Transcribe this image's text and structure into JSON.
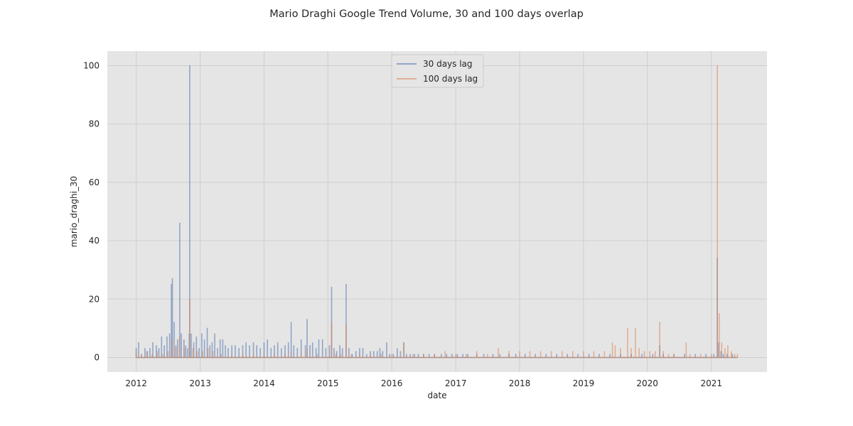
{
  "chart_data": {
    "type": "line",
    "title": "Mario Draghi Google Trend Volume, 30 and 100 days overlap",
    "xlabel": "date",
    "ylabel": "mario_draghi_30",
    "x_range": [
      "2011-07-20",
      "2021-11-15"
    ],
    "xticks": [
      "2012",
      "2013",
      "2014",
      "2015",
      "2016",
      "2017",
      "2018",
      "2019",
      "2020",
      "2021"
    ],
    "ylim": [
      -5,
      105
    ],
    "yticks": [
      0,
      20,
      40,
      60,
      80,
      100
    ],
    "grid": true,
    "legend_position": "upper center",
    "style_colors": {
      "plot_background": "#e5e5e5",
      "grid": "#cfcfcf",
      "series_30": "#4c72b0",
      "series_100": "#dd8452"
    },
    "series": [
      {
        "name": "30 days lag",
        "color": "#4c72b0",
        "points": [
          [
            "2012-01-01",
            3
          ],
          [
            "2012-01-15",
            5
          ],
          [
            "2012-02-01",
            1
          ],
          [
            "2012-02-20",
            3
          ],
          [
            "2012-03-05",
            2
          ],
          [
            "2012-03-20",
            3
          ],
          [
            "2012-04-05",
            5
          ],
          [
            "2012-04-25",
            4
          ],
          [
            "2012-05-10",
            3
          ],
          [
            "2012-05-25",
            7
          ],
          [
            "2012-06-10",
            4
          ],
          [
            "2012-06-25",
            7
          ],
          [
            "2012-07-10",
            8
          ],
          [
            "2012-07-20",
            25
          ],
          [
            "2012-07-26",
            27
          ],
          [
            "2012-08-05",
            12
          ],
          [
            "2012-08-15",
            4
          ],
          [
            "2012-08-25",
            6
          ],
          [
            "2012-09-06",
            46
          ],
          [
            "2012-09-15",
            8
          ],
          [
            "2012-09-30",
            6
          ],
          [
            "2012-10-10",
            4
          ],
          [
            "2012-10-20",
            3
          ],
          [
            "2012-10-30",
            8
          ],
          [
            "2012-11-02",
            100
          ],
          [
            "2012-11-10",
            8
          ],
          [
            "2012-11-25",
            5
          ],
          [
            "2012-12-10",
            7
          ],
          [
            "2012-12-25",
            3
          ],
          [
            "2013-01-10",
            8
          ],
          [
            "2013-01-25",
            6
          ],
          [
            "2013-02-10",
            10
          ],
          [
            "2013-02-25",
            4
          ],
          [
            "2013-03-10",
            5
          ],
          [
            "2013-03-25",
            8
          ],
          [
            "2013-04-10",
            3
          ],
          [
            "2013-04-25",
            6
          ],
          [
            "2013-05-10",
            6
          ],
          [
            "2013-05-25",
            4
          ],
          [
            "2013-06-10",
            3
          ],
          [
            "2013-07-01",
            4
          ],
          [
            "2013-07-20",
            4
          ],
          [
            "2013-08-10",
            3
          ],
          [
            "2013-09-01",
            4
          ],
          [
            "2013-09-20",
            5
          ],
          [
            "2013-10-10",
            4
          ],
          [
            "2013-11-01",
            5
          ],
          [
            "2013-11-20",
            4
          ],
          [
            "2013-12-10",
            3
          ],
          [
            "2014-01-01",
            5
          ],
          [
            "2014-01-20",
            6
          ],
          [
            "2014-02-10",
            3
          ],
          [
            "2014-03-01",
            4
          ],
          [
            "2014-03-20",
            5
          ],
          [
            "2014-04-10",
            3
          ],
          [
            "2014-05-01",
            4
          ],
          [
            "2014-05-20",
            5
          ],
          [
            "2014-06-05",
            12
          ],
          [
            "2014-06-20",
            4
          ],
          [
            "2014-07-10",
            3
          ],
          [
            "2014-08-01",
            6
          ],
          [
            "2014-08-25",
            4
          ],
          [
            "2014-09-04",
            13
          ],
          [
            "2014-09-20",
            4
          ],
          [
            "2014-10-05",
            5
          ],
          [
            "2014-10-25",
            3
          ],
          [
            "2014-11-10",
            6
          ],
          [
            "2014-12-01",
            6
          ],
          [
            "2014-12-20",
            3
          ],
          [
            "2015-01-10",
            4
          ],
          [
            "2015-01-22",
            24
          ],
          [
            "2015-02-05",
            3
          ],
          [
            "2015-02-20",
            2
          ],
          [
            "2015-03-10",
            4
          ],
          [
            "2015-03-25",
            3
          ],
          [
            "2015-04-15",
            25
          ],
          [
            "2015-05-01",
            3
          ],
          [
            "2015-05-20",
            1
          ],
          [
            "2015-06-10",
            2
          ],
          [
            "2015-07-01",
            3
          ],
          [
            "2015-07-20",
            3
          ],
          [
            "2015-08-10",
            1
          ],
          [
            "2015-09-01",
            2
          ],
          [
            "2015-09-20",
            2
          ],
          [
            "2015-10-10",
            2
          ],
          [
            "2015-10-25",
            3
          ],
          [
            "2015-11-10",
            2
          ],
          [
            "2015-12-03",
            5
          ],
          [
            "2015-12-20",
            1
          ],
          [
            "2016-01-10",
            1
          ],
          [
            "2016-02-01",
            3
          ],
          [
            "2016-02-20",
            2
          ],
          [
            "2016-03-10",
            5
          ],
          [
            "2016-03-25",
            1
          ],
          [
            "2016-04-15",
            1
          ],
          [
            "2016-05-10",
            1
          ],
          [
            "2016-06-01",
            1
          ],
          [
            "2016-07-01",
            1
          ],
          [
            "2016-08-01",
            1
          ],
          [
            "2016-09-01",
            1
          ],
          [
            "2016-10-10",
            1
          ],
          [
            "2016-11-10",
            1
          ],
          [
            "2016-12-10",
            1
          ],
          [
            "2017-01-10",
            1
          ],
          [
            "2017-02-10",
            1
          ],
          [
            "2017-03-10",
            1
          ],
          [
            "2017-05-01",
            1
          ],
          [
            "2017-06-10",
            1
          ],
          [
            "2017-08-01",
            1
          ],
          [
            "2017-09-10",
            1
          ],
          [
            "2017-11-01",
            1
          ],
          [
            "2017-12-10",
            1
          ],
          [
            "2018-02-01",
            1
          ],
          [
            "2018-04-01",
            1
          ],
          [
            "2018-06-01",
            1
          ],
          [
            "2018-08-01",
            1
          ],
          [
            "2018-10-01",
            1
          ],
          [
            "2018-12-01",
            1
          ],
          [
            "2019-02-01",
            1
          ],
          [
            "2019-04-01",
            1
          ],
          [
            "2019-06-01",
            1
          ],
          [
            "2019-08-01",
            1
          ],
          [
            "2019-10-01",
            1
          ],
          [
            "2019-12-01",
            1
          ],
          [
            "2020-02-01",
            1
          ],
          [
            "2020-03-12",
            4
          ],
          [
            "2020-04-01",
            1
          ],
          [
            "2020-06-01",
            1
          ],
          [
            "2020-08-01",
            1
          ],
          [
            "2020-10-01",
            1
          ],
          [
            "2020-12-01",
            1
          ],
          [
            "2021-01-15",
            1
          ],
          [
            "2021-02-04",
            34
          ],
          [
            "2021-02-12",
            5
          ],
          [
            "2021-02-25",
            2
          ],
          [
            "2021-03-10",
            1
          ],
          [
            "2021-04-01",
            1
          ],
          [
            "2021-05-01",
            1
          ],
          [
            "2021-05-30",
            0
          ]
        ]
      },
      {
        "name": "100 days lag",
        "color": "#dd8452",
        "points": [
          [
            "2012-01-01",
            2
          ],
          [
            "2012-02-01",
            1
          ],
          [
            "2012-03-01",
            2
          ],
          [
            "2012-04-01",
            1
          ],
          [
            "2012-05-01",
            2
          ],
          [
            "2012-06-01",
            1
          ],
          [
            "2012-07-01",
            2
          ],
          [
            "2012-07-25",
            6
          ],
          [
            "2012-08-15",
            3
          ],
          [
            "2012-09-05",
            7
          ],
          [
            "2012-10-01",
            3
          ],
          [
            "2012-11-02",
            20
          ],
          [
            "2012-11-20",
            3
          ],
          [
            "2012-12-15",
            2
          ],
          [
            "2013-01-15",
            2
          ],
          [
            "2013-02-15",
            3
          ],
          [
            "2013-03-15",
            2
          ],
          [
            "2013-05-01",
            1
          ],
          [
            "2013-07-01",
            1
          ],
          [
            "2013-09-01",
            1
          ],
          [
            "2013-11-01",
            1
          ],
          [
            "2014-01-01",
            1
          ],
          [
            "2014-03-01",
            1
          ],
          [
            "2014-05-01",
            1
          ],
          [
            "2014-06-05",
            2
          ],
          [
            "2014-08-01",
            1
          ],
          [
            "2014-09-04",
            3
          ],
          [
            "2014-11-01",
            1
          ],
          [
            "2015-01-22",
            12
          ],
          [
            "2015-02-15",
            1
          ],
          [
            "2015-03-15",
            1
          ],
          [
            "2015-04-15",
            11
          ],
          [
            "2015-05-15",
            1
          ],
          [
            "2015-07-01",
            1
          ],
          [
            "2015-09-01",
            1
          ],
          [
            "2015-11-01",
            1
          ],
          [
            "2016-01-01",
            1
          ],
          [
            "2016-03-10",
            5
          ],
          [
            "2016-05-01",
            1
          ],
          [
            "2016-07-01",
            1
          ],
          [
            "2016-09-01",
            1
          ],
          [
            "2016-11-01",
            2
          ],
          [
            "2017-01-01",
            1
          ],
          [
            "2017-03-01",
            1
          ],
          [
            "2017-05-01",
            2
          ],
          [
            "2017-07-01",
            1
          ],
          [
            "2017-09-01",
            3
          ],
          [
            "2017-11-01",
            2
          ],
          [
            "2018-01-01",
            2
          ],
          [
            "2018-03-01",
            2
          ],
          [
            "2018-05-01",
            2
          ],
          [
            "2018-07-01",
            2
          ],
          [
            "2018-09-01",
            2
          ],
          [
            "2018-11-01",
            2
          ],
          [
            "2019-01-01",
            2
          ],
          [
            "2019-03-01",
            2
          ],
          [
            "2019-05-01",
            2
          ],
          [
            "2019-06-15",
            5
          ],
          [
            "2019-07-01",
            4
          ],
          [
            "2019-08-01",
            3
          ],
          [
            "2019-09-10",
            10
          ],
          [
            "2019-10-01",
            3
          ],
          [
            "2019-10-25",
            10
          ],
          [
            "2019-11-15",
            3
          ],
          [
            "2019-12-15",
            2
          ],
          [
            "2020-01-15",
            2
          ],
          [
            "2020-02-15",
            2
          ],
          [
            "2020-03-12",
            12
          ],
          [
            "2020-04-01",
            2
          ],
          [
            "2020-05-01",
            1
          ],
          [
            "2020-06-01",
            1
          ],
          [
            "2020-08-10",
            5
          ],
          [
            "2020-09-01",
            1
          ],
          [
            "2020-11-01",
            1
          ],
          [
            "2021-01-01",
            1
          ],
          [
            "2021-02-04",
            100
          ],
          [
            "2021-02-15",
            15
          ],
          [
            "2021-03-01",
            5
          ],
          [
            "2021-03-20",
            3
          ],
          [
            "2021-04-05",
            4
          ],
          [
            "2021-04-25",
            2
          ],
          [
            "2021-05-15",
            1
          ],
          [
            "2021-05-30",
            1
          ]
        ]
      }
    ]
  }
}
